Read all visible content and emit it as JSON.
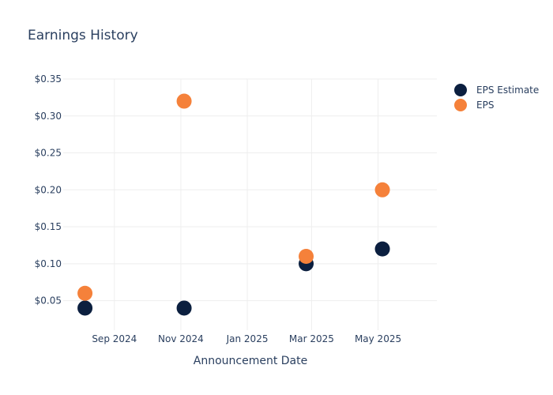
{
  "chart_data": {
    "type": "scatter",
    "title": "Earnings History",
    "xlabel": "Announcement Date",
    "ylabel": "",
    "x_ticks": [
      "Sep 2024",
      "Nov 2024",
      "Jan 2025",
      "Mar 2025",
      "May 2025"
    ],
    "y_ticks": [
      "$0.05",
      "$0.10",
      "$0.15",
      "$0.20",
      "$0.25",
      "$0.30",
      "$0.35"
    ],
    "xlim": [
      "2024-07-16",
      "2025-06-24"
    ],
    "ylim": [
      0.01,
      0.35
    ],
    "grid": true,
    "legend_position": "top-right",
    "series": [
      {
        "name": "EPS Estimate",
        "color": "#0b1f3f",
        "points": [
          {
            "x": "2024-08-05",
            "y": 0.04
          },
          {
            "x": "2024-11-04",
            "y": 0.04
          },
          {
            "x": "2025-02-24",
            "y": 0.1
          },
          {
            "x": "2025-05-05",
            "y": 0.12
          }
        ]
      },
      {
        "name": "EPS",
        "color": "#f5813a",
        "points": [
          {
            "x": "2024-08-05",
            "y": 0.06
          },
          {
            "x": "2024-11-04",
            "y": 0.32
          },
          {
            "x": "2025-02-24",
            "y": 0.11
          },
          {
            "x": "2025-05-05",
            "y": 0.2
          }
        ]
      }
    ]
  }
}
